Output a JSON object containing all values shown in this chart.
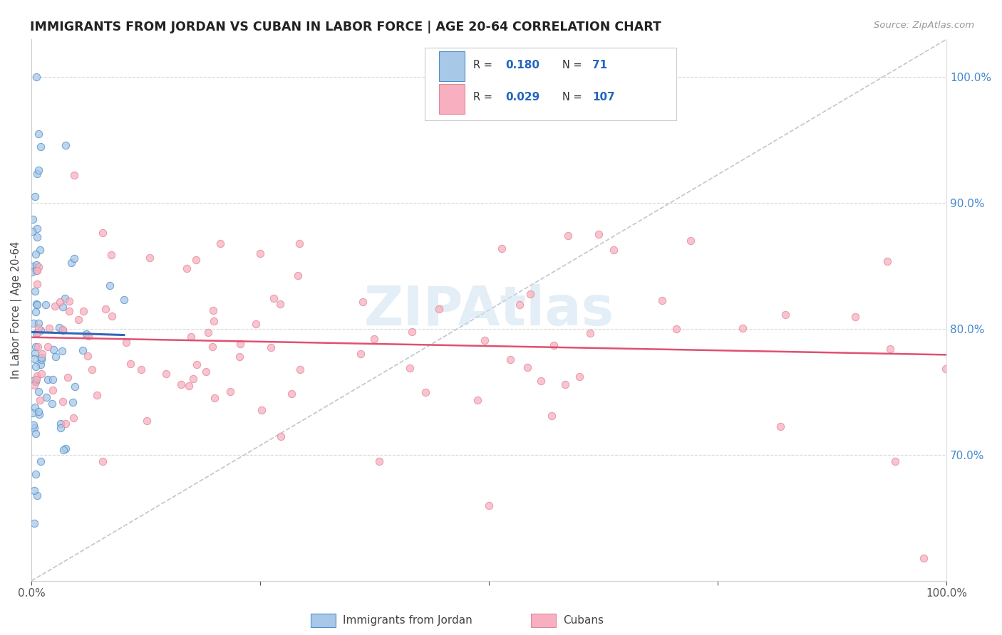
{
  "title": "IMMIGRANTS FROM JORDAN VS CUBAN IN LABOR FORCE | AGE 20-64 CORRELATION CHART",
  "source": "Source: ZipAtlas.com",
  "ylabel": "In Labor Force | Age 20-64",
  "xlim": [
    0.0,
    1.0
  ],
  "ylim": [
    0.6,
    1.03
  ],
  "yticks": [
    0.7,
    0.8,
    0.9,
    1.0
  ],
  "ytick_labels": [
    "70.0%",
    "80.0%",
    "90.0%",
    "100.0%"
  ],
  "legend_r_jordan": "0.180",
  "legend_n_jordan": "71",
  "legend_r_cuban": "0.029",
  "legend_n_cuban": "107",
  "color_jordan_fill": "#a8c8e8",
  "color_jordan_edge": "#5090c8",
  "color_jordan_line": "#3366bb",
  "color_cuban_fill": "#f8b0c0",
  "color_cuban_edge": "#e08898",
  "color_cuban_line": "#e05070",
  "color_diagonal": "#b0b8c8",
  "color_grid": "#d8d8d8",
  "color_right_tick": "#4488cc",
  "watermark_color": "#cce0f0",
  "jordan_seed": 123,
  "cuban_seed": 456
}
